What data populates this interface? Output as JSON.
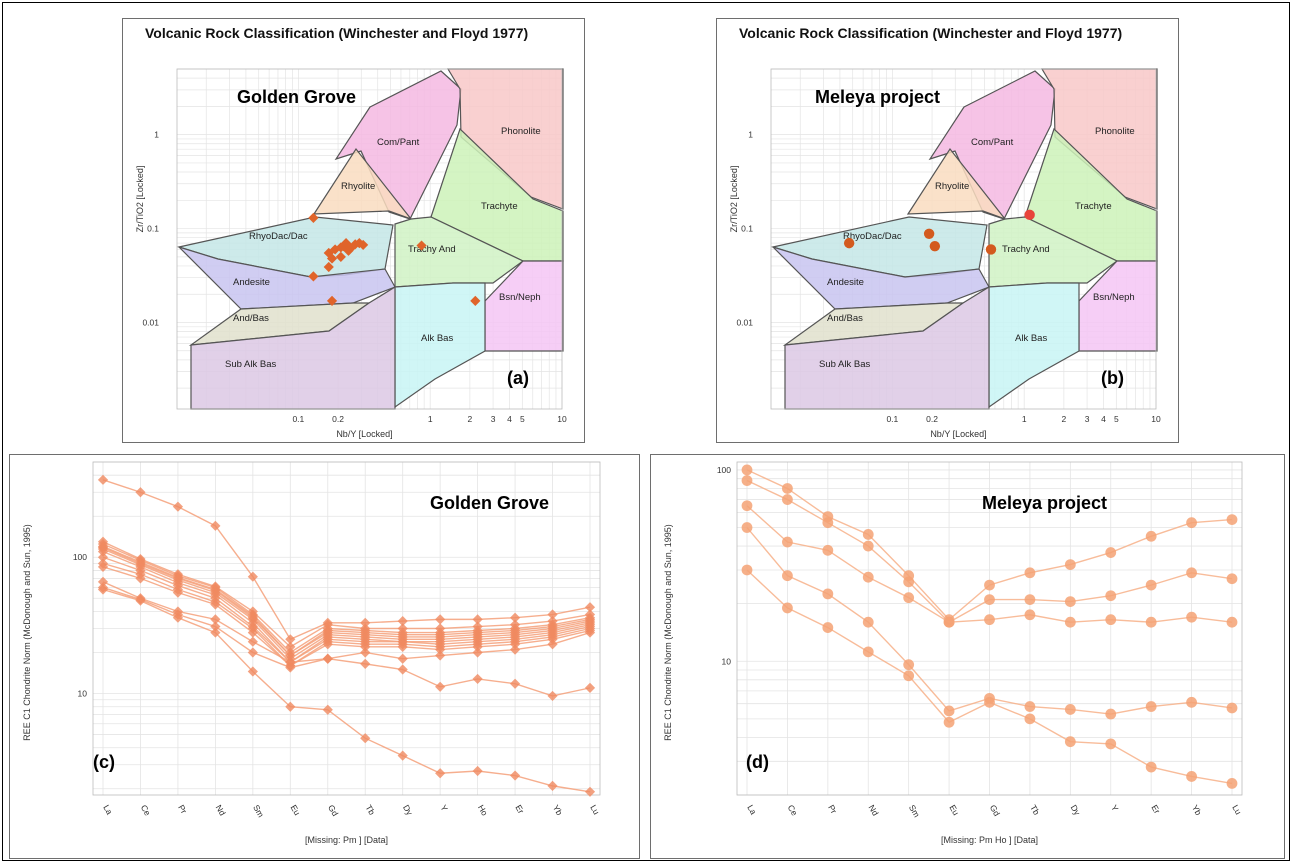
{
  "colors": {
    "marker": "#e0642a",
    "marker_dark": "#d35a1e",
    "marker_red": "#e8443a",
    "ree_line_a": "#f5a07a",
    "ree_line_b": "#f7b088",
    "grid": "#e4e4e4",
    "field_border": "#555555"
  },
  "panels": {
    "a": {
      "title": "Volcanic Rock Classification (Winchester and Floyd 1977)",
      "label": "Golden Grove",
      "letter": "(a)",
      "xlabel": "Nb/Y [Locked]",
      "ylabel": "Zr/TiO2 [Locked]"
    },
    "b": {
      "title": "Volcanic Rock Classification (Winchester and Floyd 1977)",
      "label": "Meleya project",
      "letter": "(b)",
      "xlabel": "Nb/Y [Locked]",
      "ylabel": "Zr/TiO2 [Locked]"
    },
    "c": {
      "label": "Golden Grove",
      "letter": "(c)",
      "xlabel": "[Missing: Pm ] [Data]",
      "ylabel": "REE C1 Chondrite Norm (McDonough and Sun, 1995)"
    },
    "d": {
      "label": "Meleya project",
      "letter": "(d)",
      "xlabel": "[Missing: Pm Ho ] [Data]",
      "ylabel": "REE C1 Chondrite Norm (McDonough and Sun, 1995)"
    }
  },
  "chart_data": [
    {
      "id": "a",
      "type": "scatter",
      "scale": "log-log",
      "xlim": [
        0.01,
        10
      ],
      "ylim": [
        0.001,
        5
      ],
      "x_ticks": [
        "0.1",
        "0.2",
        "1",
        "2",
        "3",
        "4",
        "5",
        "10"
      ],
      "y_ticks": [
        "1",
        "0.1",
        "0.01"
      ],
      "fields": [
        "Com/Pant",
        "Phonolite",
        "Rhyolite",
        "Trachyte",
        "RhyoDac/Dac",
        "Trachy And",
        "Andesite",
        "Bsn/Neph",
        "And/Bas",
        "Alk Bas",
        "Sub Alk Bas"
      ],
      "points": [
        {
          "x": 0.13,
          "y": 0.13
        },
        {
          "x": 0.17,
          "y": 0.055
        },
        {
          "x": 0.19,
          "y": 0.06
        },
        {
          "x": 0.21,
          "y": 0.063
        },
        {
          "x": 0.22,
          "y": 0.065
        },
        {
          "x": 0.23,
          "y": 0.07
        },
        {
          "x": 0.24,
          "y": 0.058
        },
        {
          "x": 0.25,
          "y": 0.062
        },
        {
          "x": 0.27,
          "y": 0.068
        },
        {
          "x": 0.29,
          "y": 0.07
        },
        {
          "x": 0.31,
          "y": 0.067
        },
        {
          "x": 0.21,
          "y": 0.05
        },
        {
          "x": 0.18,
          "y": 0.048
        },
        {
          "x": 0.13,
          "y": 0.031
        },
        {
          "x": 0.17,
          "y": 0.039
        },
        {
          "x": 0.18,
          "y": 0.017
        },
        {
          "x": 0.86,
          "y": 0.066
        },
        {
          "x": 2.2,
          "y": 0.017
        }
      ]
    },
    {
      "id": "b",
      "type": "scatter",
      "scale": "log-log",
      "xlim": [
        0.01,
        10
      ],
      "ylim": [
        0.001,
        5
      ],
      "x_ticks": [
        "0.1",
        "0.2",
        "1",
        "2",
        "3",
        "4",
        "5",
        "10"
      ],
      "y_ticks": [
        "1",
        "0.1",
        "0.01"
      ],
      "fields": [
        "Com/Pant",
        "Phonolite",
        "Rhyolite",
        "Trachyte",
        "RhyoDac/Dac",
        "Trachy And",
        "Andesite",
        "Bsn/Neph",
        "And/Bas",
        "Alk Bas",
        "Sub Alk Bas"
      ],
      "points": [
        {
          "x": 0.047,
          "y": 0.07
        },
        {
          "x": 0.19,
          "y": 0.088
        },
        {
          "x": 0.21,
          "y": 0.065
        },
        {
          "x": 0.56,
          "y": 0.06
        },
        {
          "x": 1.1,
          "y": 0.14,
          "highlight": true
        }
      ]
    },
    {
      "id": "c",
      "type": "line",
      "scale": "log-y",
      "categories": [
        "La",
        "Ce",
        "Pr",
        "Nd",
        "Sm",
        "Eu",
        "Gd",
        "Tb",
        "Dy",
        "Y",
        "Ho",
        "Er",
        "Yb",
        "Lu"
      ],
      "ylim": [
        1.8,
        500
      ],
      "y_ticks": [
        "100",
        "10"
      ],
      "series": [
        {
          "values": [
            370,
            300,
            235,
            170,
            72,
            25,
            33,
            33,
            34,
            35,
            35,
            36,
            38,
            43
          ]
        },
        {
          "values": [
            130,
            97,
            75,
            61,
            40,
            22,
            32,
            30,
            30,
            30,
            31,
            32,
            34,
            38
          ]
        },
        {
          "values": [
            125,
            95,
            73,
            60,
            38,
            20,
            30,
            29,
            28,
            28,
            29,
            30,
            32,
            36
          ]
        },
        {
          "values": [
            120,
            92,
            71,
            58,
            37,
            19,
            29,
            28,
            27,
            27,
            28,
            29,
            31,
            35
          ]
        },
        {
          "values": [
            118,
            90,
            70,
            57,
            36,
            19,
            28,
            27,
            26,
            26,
            27,
            28,
            30,
            34
          ]
        },
        {
          "values": [
            115,
            88,
            68,
            55,
            35,
            18,
            27,
            26,
            25,
            25,
            26,
            27,
            29,
            33
          ]
        },
        {
          "values": [
            110,
            85,
            65,
            53,
            33,
            17,
            26,
            25,
            24,
            24,
            25,
            26,
            28,
            32
          ]
        },
        {
          "values": [
            100,
            80,
            62,
            50,
            31,
            17,
            25,
            24,
            24,
            23,
            24,
            25,
            27,
            31
          ]
        },
        {
          "values": [
            90,
            75,
            58,
            47,
            30,
            16,
            24,
            23,
            23,
            22,
            23,
            24,
            26,
            30
          ]
        },
        {
          "values": [
            85,
            70,
            55,
            45,
            28,
            16,
            23,
            22,
            22,
            21,
            22,
            23,
            25,
            29
          ]
        },
        {
          "values": [
            66,
            50,
            40,
            35,
            24,
            17,
            18,
            16.5,
            15,
            11.2,
            12.8,
            11.8,
            9.6,
            11
          ]
        },
        {
          "values": [
            60,
            49,
            38,
            31,
            20,
            15.5,
            18,
            20,
            18,
            19,
            20,
            21,
            23,
            28
          ]
        },
        {
          "values": [
            58,
            48,
            36,
            28,
            14.5,
            8,
            7.6,
            4.7,
            3.5,
            2.6,
            2.7,
            2.5,
            2.1,
            1.9
          ]
        }
      ]
    },
    {
      "id": "d",
      "type": "line",
      "scale": "log-y",
      "categories": [
        "La",
        "Ce",
        "Pr",
        "Nd",
        "Sm",
        "Eu",
        "Gd",
        "Tb",
        "Dy",
        "Y",
        "Er",
        "Yb",
        "Lu"
      ],
      "ylim": [
        2,
        110
      ],
      "y_ticks": [
        "100",
        "10"
      ],
      "series": [
        {
          "values": [
            100,
            80,
            57,
            46,
            28,
            16.5,
            25,
            29,
            32,
            37,
            45,
            53,
            55
          ]
        },
        {
          "values": [
            88,
            70,
            53,
            40,
            26,
            16,
            21,
            21,
            20.5,
            22,
            25,
            29,
            27
          ]
        },
        {
          "values": [
            65,
            42,
            38,
            27.5,
            21.5,
            16,
            16.5,
            17.5,
            16,
            16.5,
            16,
            17,
            16
          ]
        },
        {
          "values": [
            50,
            28,
            22.5,
            16,
            9.6,
            5.5,
            6.4,
            5.8,
            5.6,
            5.3,
            5.8,
            6.1,
            5.7
          ]
        },
        {
          "values": [
            30,
            19,
            15,
            11.2,
            8.4,
            4.8,
            6.1,
            5,
            3.8,
            3.7,
            2.8,
            2.5,
            2.3
          ]
        }
      ]
    }
  ]
}
